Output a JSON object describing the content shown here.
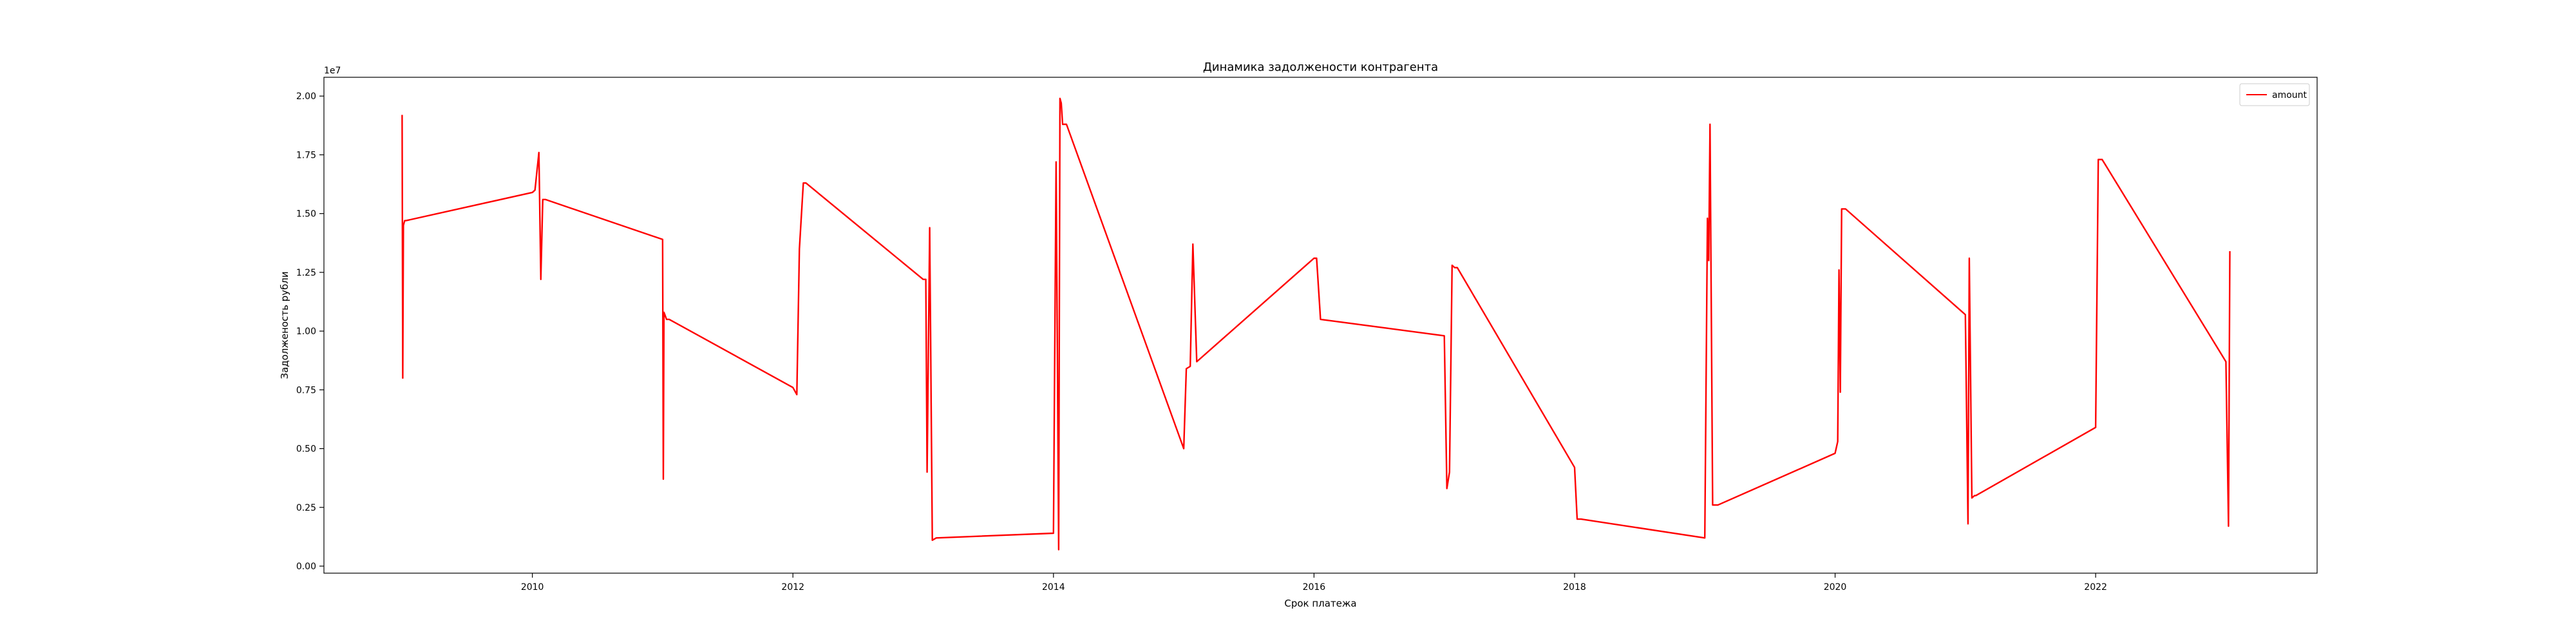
{
  "chart_data": {
    "type": "line",
    "title": "Динамика задолжености контрагента",
    "xlabel": "Срок платежа",
    "ylabel": "Задолженость рубли",
    "y_offset_label": "1e7",
    "xlim": [
      2008.4,
      2023.7
    ],
    "ylim": [
      -0.03,
      2.08
    ],
    "x_ticks": [
      2010,
      2012,
      2014,
      2016,
      2018,
      2020,
      2022
    ],
    "x_tick_labels": [
      "2010",
      "2012",
      "2014",
      "2016",
      "2018",
      "2020",
      "2022"
    ],
    "y_ticks": [
      0.0,
      0.25,
      0.5,
      0.75,
      1.0,
      1.25,
      1.5,
      1.75,
      2.0
    ],
    "y_tick_labels": [
      "0.00",
      "0.25",
      "0.50",
      "0.75",
      "1.00",
      "1.25",
      "1.50",
      "1.75",
      "2.00"
    ],
    "grid": false,
    "legend_position": "top-right",
    "series": [
      {
        "name": "amount",
        "color": "#ff0000",
        "x": [
          2009.0,
          2009.005,
          2009.01,
          2009.02,
          2009.03,
          2010.0,
          2010.02,
          2010.05,
          2010.065,
          2010.08,
          2010.1,
          2011.0,
          2011.005,
          2011.01,
          2011.03,
          2011.05,
          2012.0,
          2012.03,
          2012.05,
          2012.08,
          2012.1,
          2013.0,
          2013.02,
          2013.03,
          2013.05,
          2013.07,
          2013.1,
          2014.0,
          2014.02,
          2014.04,
          2014.05,
          2014.06,
          2014.07,
          2014.1,
          2015.0,
          2015.02,
          2015.05,
          2015.07,
          2015.1,
          2016.0,
          2016.02,
          2016.05,
          2017.0,
          2017.02,
          2017.04,
          2017.06,
          2017.08,
          2017.1,
          2018.0,
          2018.02,
          2018.05,
          2019.0,
          2019.02,
          2019.03,
          2019.04,
          2019.06,
          2019.08,
          2019.1,
          2020.0,
          2020.02,
          2020.03,
          2020.04,
          2020.05,
          2020.07,
          2020.08,
          2021.0,
          2021.02,
          2021.03,
          2021.05,
          2021.07,
          2021.08,
          2022.0,
          2022.02,
          2022.05,
          2023.0,
          2023.02,
          2023.03
        ],
        "y": [
          1.92,
          0.8,
          1.45,
          1.47,
          1.47,
          1.59,
          1.6,
          1.76,
          1.22,
          1.56,
          1.56,
          1.39,
          0.37,
          1.08,
          1.05,
          1.05,
          0.76,
          0.73,
          1.35,
          1.63,
          1.63,
          1.22,
          1.22,
          0.4,
          1.44,
          0.11,
          0.12,
          0.14,
          1.72,
          0.07,
          1.99,
          1.97,
          1.88,
          1.88,
          0.5,
          0.84,
          0.85,
          1.37,
          0.87,
          1.31,
          1.31,
          1.05,
          0.98,
          0.33,
          0.4,
          1.28,
          1.27,
          1.27,
          0.42,
          0.2,
          0.2,
          0.12,
          1.48,
          1.3,
          1.88,
          0.26,
          0.26,
          0.26,
          0.48,
          0.53,
          1.26,
          0.74,
          1.52,
          1.52,
          1.52,
          1.07,
          0.18,
          1.31,
          0.29,
          0.3,
          0.3,
          0.59,
          1.73,
          1.73,
          0.87,
          0.17,
          1.34
        ]
      }
    ]
  }
}
